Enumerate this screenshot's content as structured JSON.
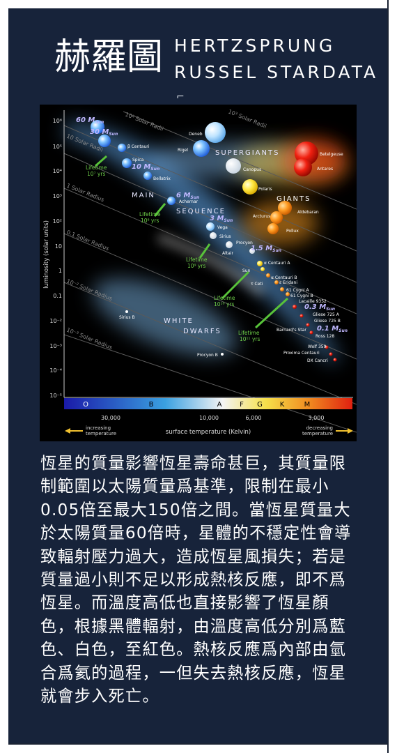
{
  "header": {
    "title_zh": "赫羅圖",
    "title_en_line1": "HERTZSPRUNG",
    "title_en_line2": "RUSSEL STARDATA",
    "mark": "⌐"
  },
  "chart_data": {
    "type": "diagram",
    "ylabel": "luminosity (solar units)",
    "xlabel": "surface temperature (Kelvin)",
    "y_ticks": [
      "10⁶",
      "10⁵",
      "10⁴",
      "10³",
      "10²",
      "10",
      "1",
      "0.1",
      "10⁻²",
      "10⁻³",
      "10⁻⁴",
      "10⁻⁵"
    ],
    "x_ticks": [
      "30,000",
      "10,000",
      "6,000",
      "3,000"
    ],
    "spectral_classes": [
      "O",
      "B",
      "A",
      "F",
      "G",
      "K",
      "M"
    ],
    "left_arrow_label": [
      "increasing",
      "temperature"
    ],
    "right_arrow_label": [
      "decreasing",
      "temperature"
    ],
    "radius_lines": [
      "10³ Solar Radii",
      "10² Solar Radii",
      "10 Solar Radii",
      "1 Solar Radius",
      "0.1 Solar Radius",
      "10⁻² Solar Radius",
      "10⁻³ Solar Radius"
    ],
    "regions": [
      "SUPERGIANTS",
      "GIANTS",
      "MAIN",
      "SEQUENCE",
      "WHITE",
      "DWARFS"
    ],
    "stars": [
      "Deneb",
      "Rigel",
      "β Centauri",
      "Spica",
      "Bellatrix",
      "Achernar",
      "Vega",
      "Sirius",
      "Procyon",
      "Altair",
      "Sun",
      "α Centauri A",
      "α Centauri B",
      "τ Ceti",
      "ε Eridani",
      "61 Cygni A",
      "61 Cygni B",
      "Lacaille 9352",
      "Gliese 725 A",
      "Gliese 725 B",
      "Barnard's Star",
      "Ross 128",
      "Wolf 359",
      "Proxima Centauri",
      "DX Cancri",
      "Canopus",
      "Polaris",
      "Arcturus",
      "Aldebaran",
      "Pollux",
      "Betelgeuse",
      "Antares",
      "Sirius B",
      "Procyon B"
    ],
    "masses": [
      "60 M",
      "30 M",
      "10 M",
      "6 M",
      "3 M",
      "1.5 M",
      "0.3 M",
      "0.1 M"
    ],
    "mass_subscript": "Sun",
    "lifetimes": [
      {
        "line1": "Lifetime",
        "line2": "10⁷ yrs"
      },
      {
        "line1": "Lifetime",
        "line2": "10⁸ yrs"
      },
      {
        "line1": "Lifetime",
        "line2": "10⁹ yrs"
      },
      {
        "line1": "Lifetime",
        "line2": "10¹⁰ yrs"
      },
      {
        "line1": "Lifetime",
        "line2": "10¹¹ yrs"
      }
    ]
  },
  "body": {
    "lines": [
      "恆星的質量影響恆星壽命甚巨，其質量限",
      "制範圍以太陽質量爲基準，限制在最小",
      "0.05倍至最大150倍之間。當恆星質量大",
      "於太陽質量60倍時，星體的不穩定性會導",
      "致輻射壓力過大，造成恆星風損失；若是",
      "質量過小則不足以形成熱核反應，即不爲",
      "恆星。而溫度高低也直接影響了恆星顏",
      "色，根據黑體輻射，由溫度高低分別爲藍",
      "色、白色，至紅色。熱核反應爲內部由氫",
      "合爲氦的過程，一但失去熱核反應，恆星",
      "就會步入死亡。"
    ]
  }
}
